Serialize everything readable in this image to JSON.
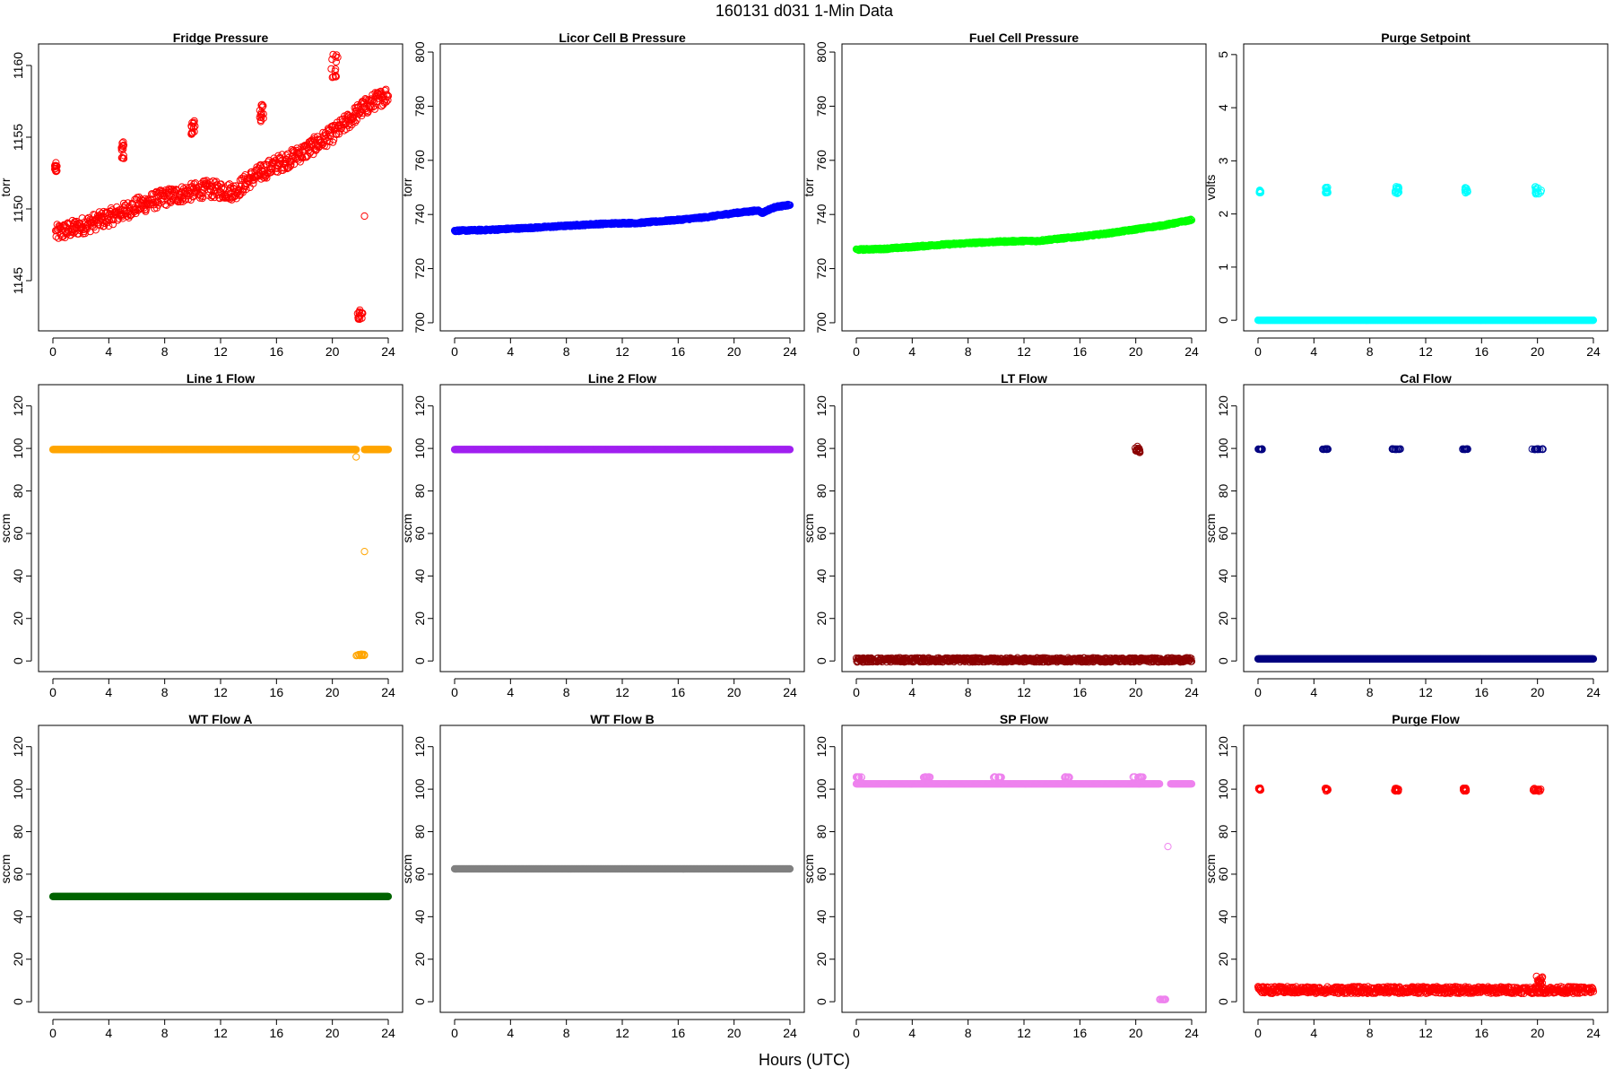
{
  "figure": {
    "title": "160131    d031    1-Min Data",
    "xlabel": "Hours (UTC)"
  },
  "chart_data": [
    {
      "type": "scatter",
      "title": "Fridge Pressure",
      "ylabel": "torr",
      "xlim": [
        0,
        24
      ],
      "xticks": [
        0,
        4,
        8,
        12,
        16,
        20,
        24
      ],
      "ylim": [
        1141.5,
        1161.5
      ],
      "yticks": [
        1145,
        1150,
        1155,
        1160
      ],
      "color": "#ff0000",
      "series": [
        {
          "kind": "trend",
          "x": [
            0.2,
            1,
            2,
            3,
            4,
            5,
            6,
            7,
            8,
            9,
            10,
            11,
            12,
            13,
            14,
            15,
            16,
            17,
            18,
            19,
            20,
            21,
            22,
            23,
            24
          ],
          "y": [
            1148.3,
            1148.5,
            1148.8,
            1149.1,
            1149.4,
            1149.8,
            1150.2,
            1150.5,
            1150.8,
            1151.0,
            1151.2,
            1151.4,
            1151.3,
            1151.2,
            1152.0,
            1152.6,
            1153.1,
            1153.5,
            1154.0,
            1154.6,
            1155.2,
            1156.0,
            1156.9,
            1157.5,
            1158.0
          ],
          "noise": 0.6
        },
        {
          "kind": "cluster",
          "x": [
            0.1,
            0.3
          ],
          "y": [
            1152.6,
            1153.3
          ]
        },
        {
          "kind": "cluster",
          "x": [
            4.9,
            5.1
          ],
          "y": [
            1153.5,
            1154.8
          ]
        },
        {
          "kind": "cluster",
          "x": [
            9.9,
            10.2
          ],
          "y": [
            1155.2,
            1156.3
          ]
        },
        {
          "kind": "cluster",
          "x": [
            14.8,
            15.1
          ],
          "y": [
            1156.0,
            1157.3
          ]
        },
        {
          "kind": "cluster",
          "x": [
            19.9,
            20.4
          ],
          "y": [
            1158.8,
            1160.9
          ]
        },
        {
          "kind": "cluster",
          "x": [
            21.8,
            22.2
          ],
          "y": [
            1142.3,
            1143.0
          ]
        },
        {
          "kind": "point",
          "x": [
            22.3
          ],
          "y": [
            1149.5
          ]
        }
      ]
    },
    {
      "type": "scatter",
      "title": "Licor Cell B Pressure",
      "ylabel": "torr",
      "xlim": [
        0,
        24
      ],
      "xticks": [
        0,
        4,
        8,
        12,
        16,
        20,
        24
      ],
      "ylim": [
        697,
        803
      ],
      "yticks": [
        700,
        720,
        740,
        760,
        780,
        800
      ],
      "color": "#0000ff",
      "series": [
        {
          "kind": "trend",
          "x": [
            0,
            2,
            4,
            6,
            8,
            10,
            12,
            13,
            14,
            16,
            18,
            20,
            21.8,
            22,
            22.5,
            23,
            24
          ],
          "y": [
            734,
            734.2,
            734.7,
            735.2,
            735.8,
            736.4,
            736.8,
            736.8,
            737.2,
            738.0,
            739.0,
            740.5,
            741.5,
            740.5,
            741.8,
            742.8,
            743.5
          ],
          "noise": 0.3
        }
      ]
    },
    {
      "type": "scatter",
      "title": "Fuel Cell Pressure",
      "ylabel": "torr",
      "xlim": [
        0,
        24
      ],
      "xticks": [
        0,
        4,
        8,
        12,
        16,
        20,
        24
      ],
      "ylim": [
        697,
        803
      ],
      "yticks": [
        700,
        720,
        740,
        760,
        780,
        800
      ],
      "color": "#00ff00",
      "series": [
        {
          "kind": "trend",
          "x": [
            0,
            2,
            4,
            6,
            8,
            10,
            12,
            13,
            14,
            16,
            18,
            20,
            22,
            23,
            24
          ],
          "y": [
            727,
            727.3,
            728,
            728.8,
            729.4,
            729.9,
            730.2,
            730.2,
            730.8,
            731.8,
            733.0,
            734.5,
            736.0,
            737.0,
            738.0
          ],
          "noise": 0.3
        }
      ]
    },
    {
      "type": "scatter",
      "title": "Purge Setpoint",
      "ylabel": "volts",
      "xlim": [
        0,
        24
      ],
      "xticks": [
        0,
        4,
        8,
        12,
        16,
        20,
        24
      ],
      "ylim": [
        -0.2,
        5.2
      ],
      "yticks": [
        0,
        1,
        2,
        3,
        4,
        5
      ],
      "color": "#00ffff",
      "series": [
        {
          "kind": "trend",
          "x": [
            0,
            24
          ],
          "y": [
            0,
            0
          ],
          "noise": 0
        },
        {
          "kind": "cluster",
          "x": [
            0.1,
            0.2
          ],
          "y": [
            2.4,
            2.45
          ]
        },
        {
          "kind": "cluster",
          "x": [
            4.8,
            5.0
          ],
          "y": [
            2.38,
            2.5
          ]
        },
        {
          "kind": "cluster",
          "x": [
            9.8,
            10.1
          ],
          "y": [
            2.38,
            2.52
          ]
        },
        {
          "kind": "cluster",
          "x": [
            14.8,
            15.0
          ],
          "y": [
            2.38,
            2.5
          ]
        },
        {
          "kind": "cluster",
          "x": [
            19.8,
            20.3
          ],
          "y": [
            2.35,
            2.52
          ]
        }
      ]
    },
    {
      "type": "scatter",
      "title": "Line 1 Flow",
      "ylabel": "sccm",
      "xlim": [
        0,
        24
      ],
      "xticks": [
        0,
        4,
        8,
        12,
        16,
        20,
        24
      ],
      "ylim": [
        -5,
        130
      ],
      "yticks": [
        0,
        20,
        40,
        60,
        80,
        100,
        120
      ],
      "color": "#ffa500",
      "series": [
        {
          "kind": "trend",
          "x": [
            0,
            21.7
          ],
          "y": [
            99.5,
            99.5
          ],
          "noise": 0
        },
        {
          "kind": "trend",
          "x": [
            22.3,
            24
          ],
          "y": [
            99.5,
            99.5
          ],
          "noise": 0
        },
        {
          "kind": "cluster",
          "x": [
            21.7,
            22.3
          ],
          "y": [
            2.5,
            3.2
          ]
        },
        {
          "kind": "point",
          "x": [
            21.7,
            22.3
          ],
          "y": [
            96,
            51.5
          ]
        }
      ]
    },
    {
      "type": "scatter",
      "title": "Line 2 Flow",
      "ylabel": "sccm",
      "xlim": [
        0,
        24
      ],
      "xticks": [
        0,
        4,
        8,
        12,
        16,
        20,
        24
      ],
      "ylim": [
        -5,
        130
      ],
      "yticks": [
        0,
        20,
        40,
        60,
        80,
        100,
        120
      ],
      "color": "#a020f0",
      "series": [
        {
          "kind": "trend",
          "x": [
            0,
            24
          ],
          "y": [
            99.5,
            99.5
          ],
          "noise": 0
        }
      ]
    },
    {
      "type": "scatter",
      "title": "LT Flow",
      "ylabel": "sccm",
      "xlim": [
        0,
        24
      ],
      "xticks": [
        0,
        4,
        8,
        12,
        16,
        20,
        24
      ],
      "ylim": [
        -5,
        130
      ],
      "yticks": [
        0,
        20,
        40,
        60,
        80,
        100,
        120
      ],
      "color": "#8b0000",
      "series": [
        {
          "kind": "trend",
          "x": [
            0,
            24
          ],
          "y": [
            0.5,
            0.5
          ],
          "noise": 1.0
        },
        {
          "kind": "cluster",
          "x": [
            19.9,
            20.3
          ],
          "y": [
            98,
            101
          ]
        }
      ]
    },
    {
      "type": "scatter",
      "title": "Cal Flow",
      "ylabel": "sccm",
      "xlim": [
        0,
        24
      ],
      "xticks": [
        0,
        4,
        8,
        12,
        16,
        20,
        24
      ],
      "ylim": [
        -5,
        130
      ],
      "yticks": [
        0,
        20,
        40,
        60,
        80,
        100,
        120
      ],
      "color": "#000080",
      "series": [
        {
          "kind": "trend",
          "x": [
            0,
            24
          ],
          "y": [
            1,
            1
          ],
          "noise": 0
        },
        {
          "kind": "cluster",
          "x": [
            0.0,
            0.3
          ],
          "y": [
            99.5,
            99.8
          ]
        },
        {
          "kind": "cluster",
          "x": [
            4.6,
            5.0
          ],
          "y": [
            99.5,
            99.8
          ]
        },
        {
          "kind": "cluster",
          "x": [
            9.6,
            10.2
          ],
          "y": [
            99.5,
            99.8
          ]
        },
        {
          "kind": "cluster",
          "x": [
            14.6,
            15.0
          ],
          "y": [
            99.5,
            99.8
          ]
        },
        {
          "kind": "cluster",
          "x": [
            19.6,
            20.4
          ],
          "y": [
            99.5,
            99.8
          ]
        }
      ]
    },
    {
      "type": "scatter",
      "title": "WT Flow A",
      "ylabel": "sccm",
      "xlim": [
        0,
        24
      ],
      "xticks": [
        0,
        4,
        8,
        12,
        16,
        20,
        24
      ],
      "ylim": [
        -5,
        130
      ],
      "yticks": [
        0,
        20,
        40,
        60,
        80,
        100,
        120
      ],
      "color": "#006400",
      "series": [
        {
          "kind": "trend",
          "x": [
            0,
            24
          ],
          "y": [
            49.5,
            49.5
          ],
          "noise": 0
        }
      ]
    },
    {
      "type": "scatter",
      "title": "WT Flow B",
      "ylabel": "sccm",
      "xlim": [
        0,
        24
      ],
      "xticks": [
        0,
        4,
        8,
        12,
        16,
        20,
        24
      ],
      "ylim": [
        -5,
        130
      ],
      "yticks": [
        0,
        20,
        40,
        60,
        80,
        100,
        120
      ],
      "color": "#808080",
      "series": [
        {
          "kind": "trend",
          "x": [
            0,
            24
          ],
          "y": [
            62.5,
            62.5
          ],
          "noise": 0
        }
      ]
    },
    {
      "type": "scatter",
      "title": "SP Flow",
      "ylabel": "sccm",
      "xlim": [
        0,
        24
      ],
      "xticks": [
        0,
        4,
        8,
        12,
        16,
        20,
        24
      ],
      "ylim": [
        -5,
        130
      ],
      "yticks": [
        0,
        20,
        40,
        60,
        80,
        100,
        120
      ],
      "color": "#ee82ee",
      "series": [
        {
          "kind": "trend",
          "x": [
            0,
            21.7
          ],
          "y": [
            102.5,
            102.5
          ],
          "noise": 0
        },
        {
          "kind": "trend",
          "x": [
            22.5,
            24
          ],
          "y": [
            102.5,
            102.5
          ],
          "noise": 0
        },
        {
          "kind": "cluster",
          "x": [
            0.0,
            0.4
          ],
          "y": [
            105.5,
            105.8
          ]
        },
        {
          "kind": "cluster",
          "x": [
            4.8,
            5.3
          ],
          "y": [
            105.5,
            105.8
          ]
        },
        {
          "kind": "cluster",
          "x": [
            9.8,
            10.4
          ],
          "y": [
            105.5,
            105.8
          ]
        },
        {
          "kind": "cluster",
          "x": [
            14.8,
            15.3
          ],
          "y": [
            105.5,
            105.8
          ]
        },
        {
          "kind": "cluster",
          "x": [
            19.8,
            20.6
          ],
          "y": [
            105.5,
            105.8
          ]
        },
        {
          "kind": "cluster",
          "x": [
            21.7,
            22.3
          ],
          "y": [
            1.0,
            1.2
          ]
        },
        {
          "kind": "point",
          "x": [
            22.3
          ],
          "y": [
            73
          ]
        }
      ]
    },
    {
      "type": "scatter",
      "title": "Purge Flow",
      "ylabel": "sccm",
      "xlim": [
        0,
        24
      ],
      "xticks": [
        0,
        4,
        8,
        12,
        16,
        20,
        24
      ],
      "ylim": [
        -5,
        130
      ],
      "yticks": [
        0,
        20,
        40,
        60,
        80,
        100,
        120
      ],
      "color": "#ff0000",
      "series": [
        {
          "kind": "trend",
          "x": [
            0,
            24
          ],
          "y": [
            5.5,
            5.5
          ],
          "noise": 1.6
        },
        {
          "kind": "cluster",
          "x": [
            19.9,
            20.4
          ],
          "y": [
            8,
            12
          ]
        },
        {
          "kind": "cluster",
          "x": [
            0.05,
            0.2
          ],
          "y": [
            99.5,
            100.5
          ]
        },
        {
          "kind": "cluster",
          "x": [
            4.8,
            5.0
          ],
          "y": [
            99,
            100.5
          ]
        },
        {
          "kind": "cluster",
          "x": [
            9.7,
            10.1
          ],
          "y": [
            99,
            100.5
          ]
        },
        {
          "kind": "cluster",
          "x": [
            14.7,
            14.9
          ],
          "y": [
            99,
            100.5
          ]
        },
        {
          "kind": "cluster",
          "x": [
            19.7,
            20.3
          ],
          "y": [
            99,
            100.5
          ]
        }
      ]
    }
  ]
}
